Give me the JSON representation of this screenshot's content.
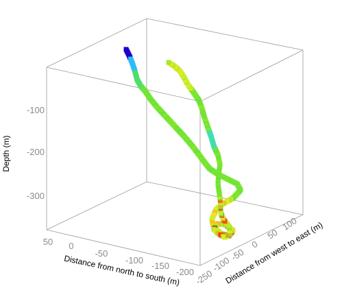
{
  "chart_data": {
    "type": "scatter3d",
    "title": "",
    "axes": {
      "z": {
        "label": "Depth (m)",
        "ticks": [
          "-100",
          "-200",
          "-300"
        ],
        "range": [
          -380,
          30
        ]
      },
      "x": {
        "label": "Distance from north to south (m)",
        "ticks": [
          "50",
          "0",
          "-50",
          "-100",
          "-150",
          "-200"
        ],
        "range": [
          70,
          -230
        ]
      },
      "y": {
        "label": "Distance from west to east (m)",
        "ticks": [
          "-250",
          "-100",
          "-50",
          "0",
          "50",
          "100"
        ],
        "range": [
          -250,
          120
        ]
      }
    },
    "colormap": [
      "#1a00c8",
      "#2a8cff",
      "#33dcf0",
      "#55e04a",
      "#7ee62c",
      "#c8f02a",
      "#f0e628",
      "#f5a51e",
      "#e82010"
    ],
    "series": [
      {
        "segments_depth_color": [
          [
            0,
            0.0
          ],
          [
            -20,
            0.15
          ],
          [
            -35,
            0.35
          ],
          [
            -60,
            0.45
          ],
          [
            -100,
            0.45
          ],
          [
            -150,
            0.45
          ],
          [
            -200,
            0.45
          ],
          [
            -240,
            0.45
          ],
          [
            -280,
            0.5
          ],
          [
            -320,
            0.55
          ],
          [
            -350,
            0.65
          ],
          [
            -370,
            0.95
          ]
        ]
      }
    ]
  }
}
